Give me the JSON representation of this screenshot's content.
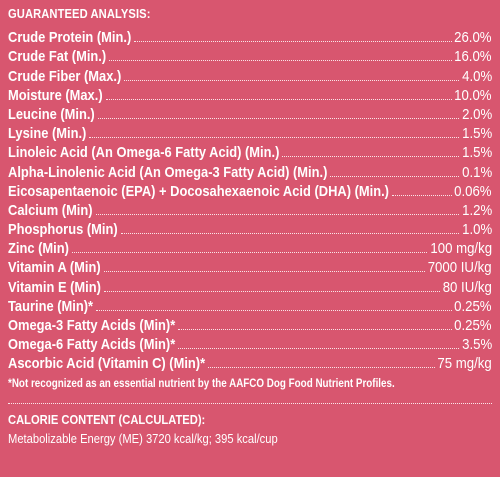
{
  "heading": "GUARANTEED ANALYSIS:",
  "nutrients": [
    {
      "label": "Crude Protein (Min.)",
      "value": "26.0%"
    },
    {
      "label": "Crude Fat (Min.)",
      "value": "16.0%"
    },
    {
      "label": "Crude Fiber (Max.)",
      "value": "4.0%"
    },
    {
      "label": "Moisture (Max.)",
      "value": "10.0%"
    },
    {
      "label": "Leucine (Min.)",
      "value": "2.0%"
    },
    {
      "label": "Lysine (Min.)",
      "value": "1.5%"
    },
    {
      "label": "Linoleic Acid (An Omega-6 Fatty Acid) (Min.)",
      "value": "1.5%"
    },
    {
      "label": "Alpha-Linolenic Acid (An Omega-3 Fatty Acid) (Min.)",
      "value": "0.1%"
    },
    {
      "label": "Eicosapentaenoic (EPA) + Docosahexaenoic Acid (DHA) (Min.)",
      "value": "0.06%"
    },
    {
      "label": "Calcium (Min)",
      "value": "1.2%"
    },
    {
      "label": "Phosphorus (Min)",
      "value": "1.0%"
    },
    {
      "label": "Zinc (Min)",
      "value": "100 mg/kg"
    },
    {
      "label": "Vitamin A (Min)",
      "value": "7000 IU/kg"
    },
    {
      "label": "Vitamin E (Min)",
      "value": "80 IU/kg"
    },
    {
      "label": "Taurine (Min)*",
      "value": "0.25%"
    },
    {
      "label": "Omega-3 Fatty Acids (Min)*",
      "value": "0.25%"
    },
    {
      "label": "Omega-6 Fatty Acids (Min)*",
      "value": "3.5%"
    },
    {
      "label": "Ascorbic Acid (Vitamin C) (Min)*",
      "value": "75 mg/kg"
    }
  ],
  "footnote": "*Not recognized as an essential nutrient by the AAFCO Dog Food Nutrient Profiles.",
  "calorie": {
    "heading": "CALORIE CONTENT (CALCULATED):",
    "line": "Metabolizable Energy (ME) 3720 kcal/kg;  395 kcal/cup"
  },
  "colors": {
    "background": "#d8566f",
    "text": "#ffffff"
  }
}
